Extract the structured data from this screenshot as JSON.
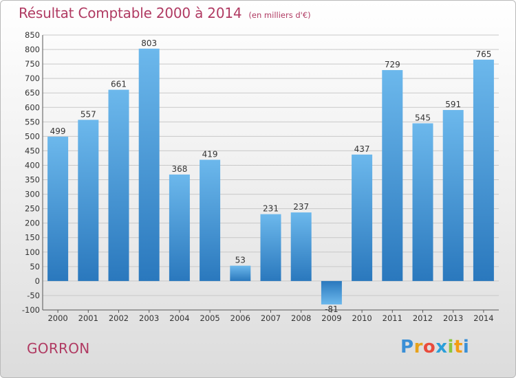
{
  "header": {
    "title": "Résultat Comptable 2000 à 2014",
    "unit": "(en milliers d'€)"
  },
  "footer": {
    "place": "GORRON",
    "logo": {
      "letters": [
        "P",
        "r",
        "o",
        "x",
        "i",
        "t",
        "i"
      ],
      "colors": [
        "#3a8fd6",
        "#e8a21b",
        "#e94b3c",
        "#2b9fd9",
        "#8cc63f",
        "#f39c12",
        "#3a8fd6"
      ]
    }
  },
  "chart_data": {
    "type": "bar",
    "title": "Résultat Comptable 2000 à 2014",
    "subtitle": "(en milliers d'€)",
    "categories": [
      "2000",
      "2001",
      "2002",
      "2003",
      "2004",
      "2005",
      "2006",
      "2007",
      "2008",
      "2009",
      "2010",
      "2011",
      "2012",
      "2013",
      "2014"
    ],
    "values": [
      499,
      557,
      661,
      803,
      368,
      419,
      53,
      231,
      237,
      -81,
      437,
      729,
      545,
      591,
      765
    ],
    "ylim": [
      -100,
      850
    ],
    "yticks": [
      -100,
      -50,
      0,
      50,
      100,
      150,
      200,
      250,
      300,
      350,
      400,
      450,
      500,
      550,
      600,
      650,
      700,
      750,
      800,
      850
    ],
    "grid": true,
    "colors": {
      "bar": "#4a9fe0",
      "grid": "#c8c8c8",
      "axis": "#555555"
    }
  }
}
